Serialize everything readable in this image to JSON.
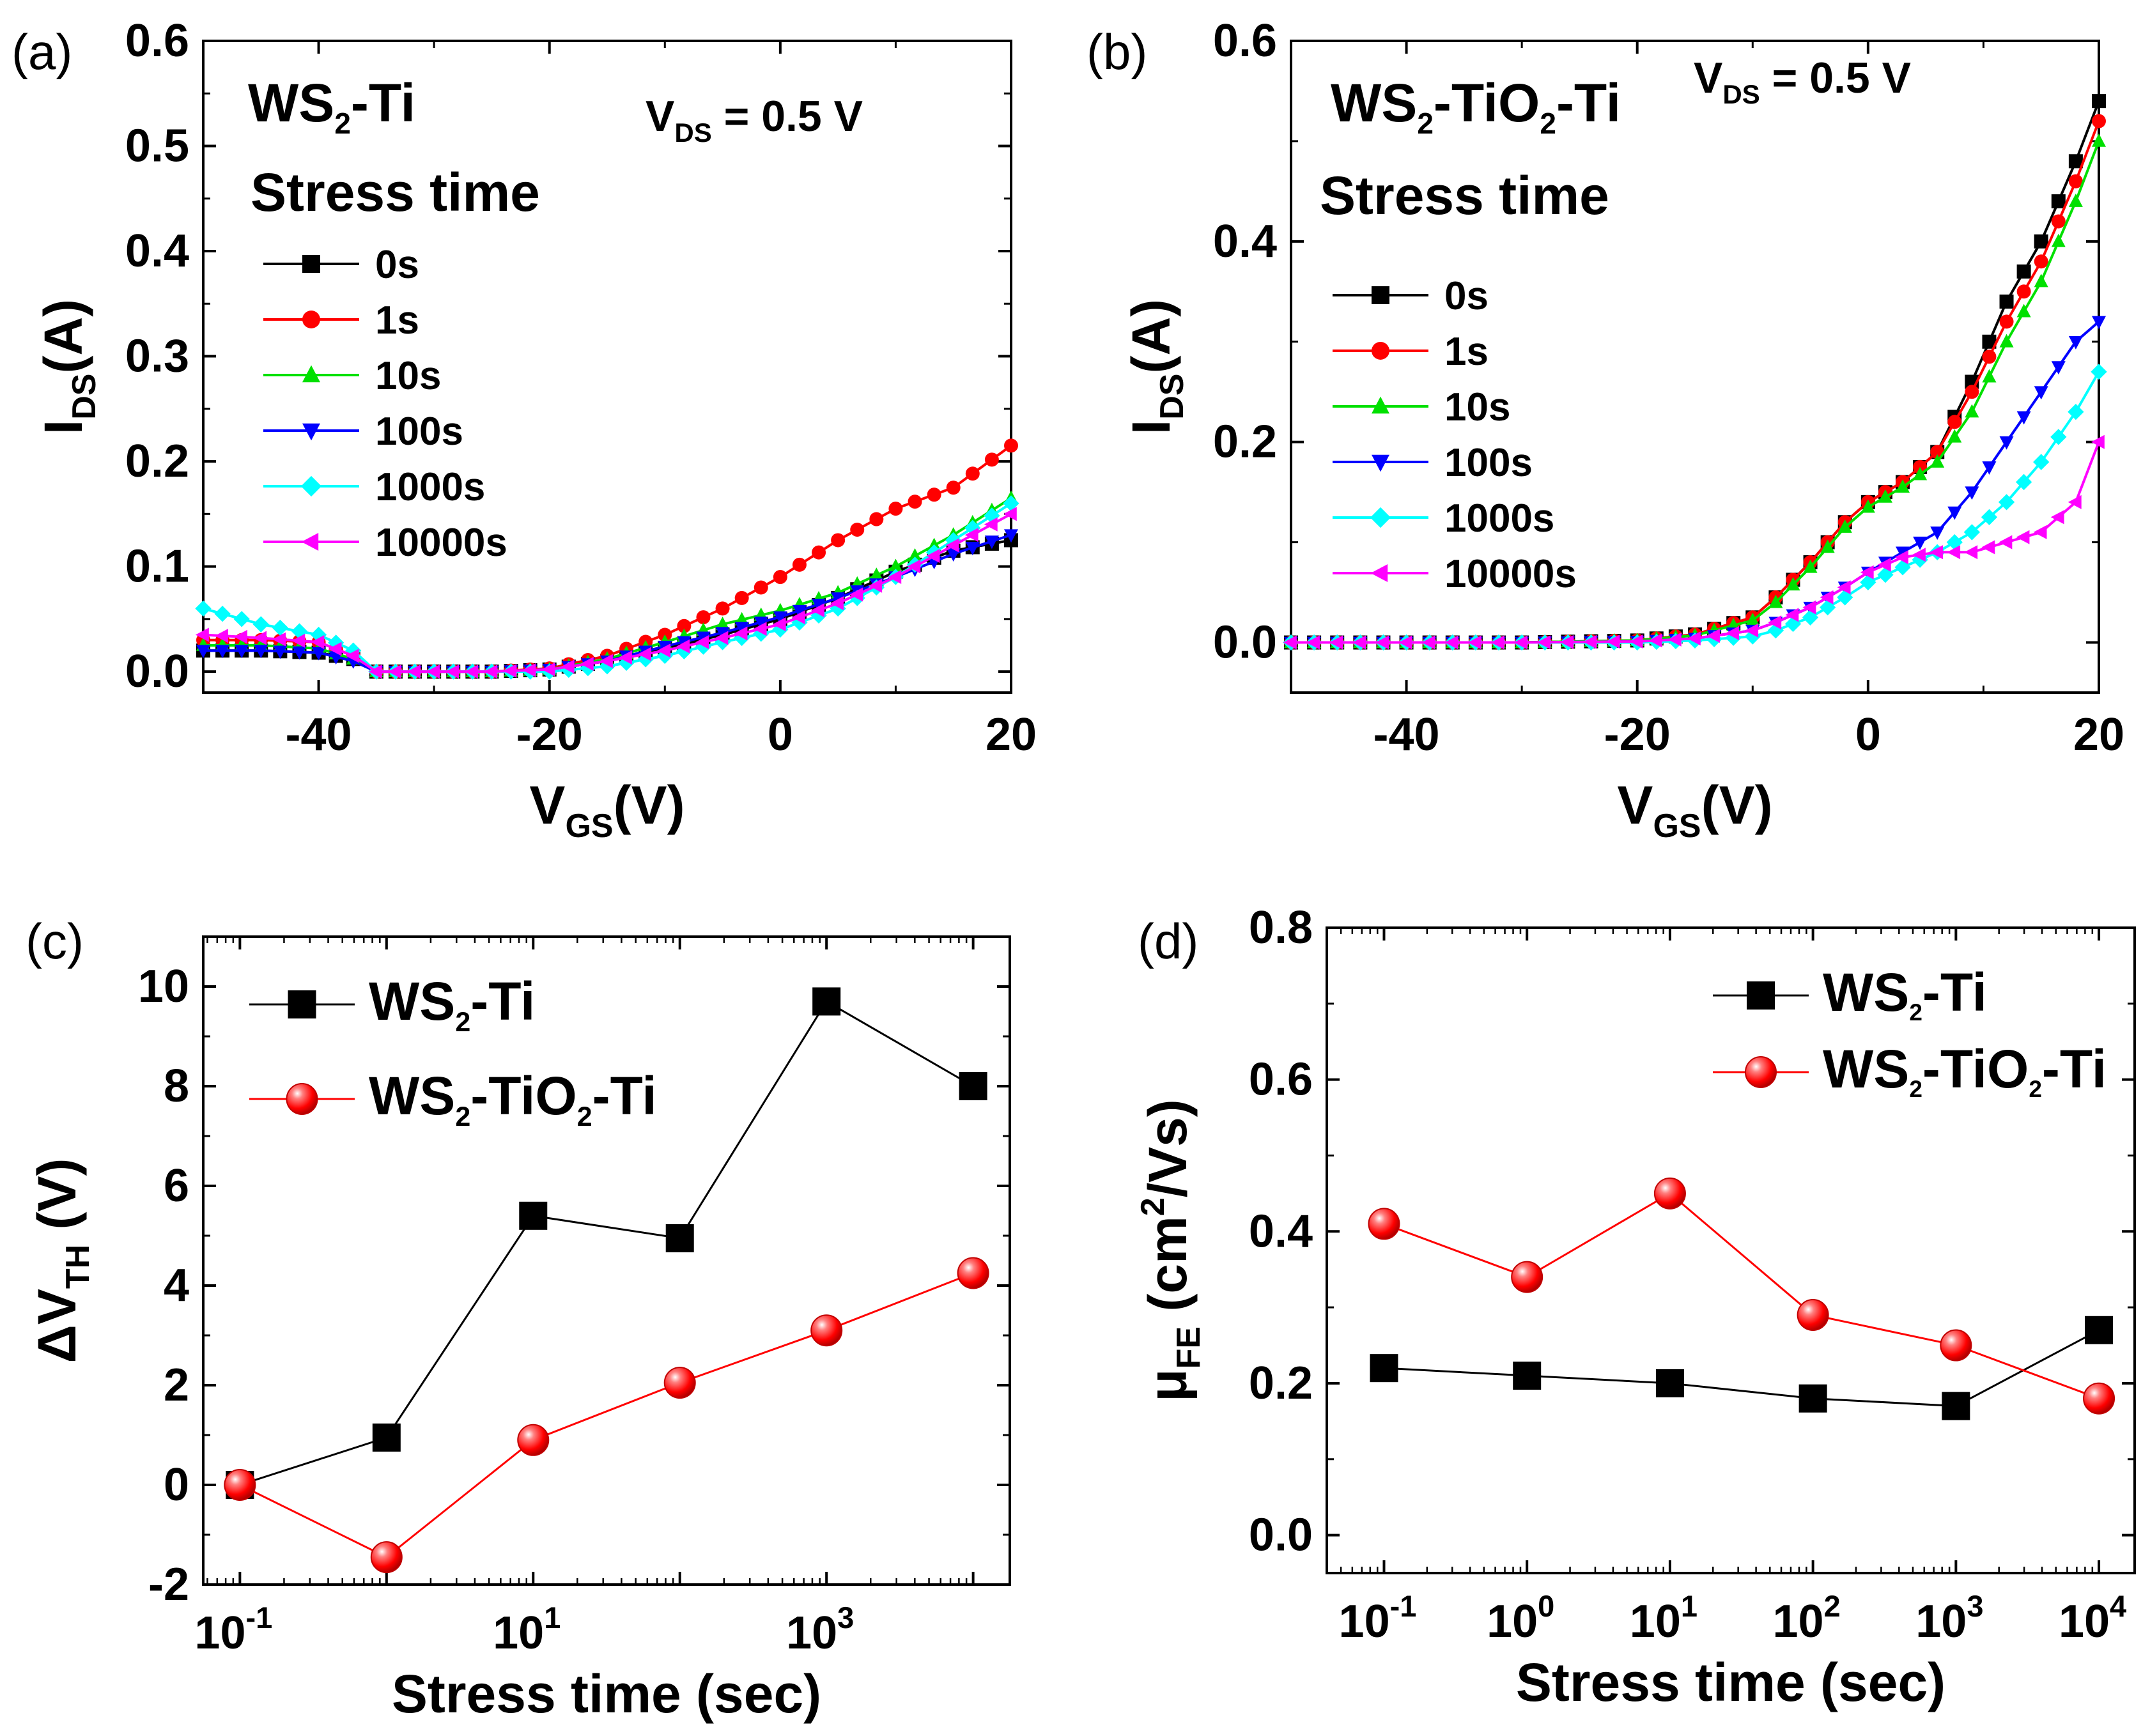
{
  "figure": {
    "panel_labels": [
      "(a)",
      "(b)",
      "(c)",
      "(d)"
    ]
  },
  "colors": {
    "black": "#000000",
    "red": "#ff0000",
    "green": "#00e000",
    "blue": "#0000ff",
    "cyan": "#00ffff",
    "magenta": "#ff00ff"
  },
  "chart_data": [
    {
      "panel": "(a)",
      "type": "line",
      "title": "",
      "sample": "WS2-Ti",
      "sample_parts": {
        "base": "WS",
        "sub": "2",
        "tail": "-Ti"
      },
      "condition": {
        "prefix": "V",
        "sub": "DS",
        "value": " = 0.5 V"
      },
      "legend_title": "Stress time",
      "xlabel": {
        "base": "V",
        "sub": "GS",
        "tail": "(V)"
      },
      "ylabel": {
        "base": "I",
        "sub": "DS",
        "tail": "(A)"
      },
      "xlim": [
        -50,
        20
      ],
      "ylim": [
        -0.02,
        0.6
      ],
      "xticks": [
        "-40",
        "-20",
        "0",
        "20"
      ],
      "xtick_values": [
        -40,
        -20,
        0,
        20
      ],
      "yticks": [
        "0.0",
        "0.1",
        "0.2",
        "0.3",
        "0.4",
        "0.5",
        "0.6"
      ],
      "ytick_values": [
        0.0,
        0.1,
        0.2,
        0.3,
        0.4,
        0.5,
        0.6
      ],
      "x": [
        -50,
        -45,
        -40,
        -37,
        -35,
        -30,
        -25,
        -20,
        -15,
        -10,
        -5,
        0,
        5,
        10,
        15,
        20
      ],
      "series": [
        {
          "name": "0s",
          "color": "#000000",
          "marker": "square",
          "values": [
            0.02,
            0.02,
            0.018,
            0.012,
            0.0,
            0.0,
            0.0,
            0.002,
            0.01,
            0.022,
            0.035,
            0.05,
            0.07,
            0.095,
            0.115,
            0.125
          ]
        },
        {
          "name": "1s",
          "color": "#ff0000",
          "marker": "circle",
          "values": [
            0.03,
            0.03,
            0.028,
            0.015,
            0.0,
            0.0,
            0.0,
            0.003,
            0.015,
            0.035,
            0.06,
            0.09,
            0.125,
            0.155,
            0.175,
            0.215
          ]
        },
        {
          "name": "10s",
          "color": "#00e000",
          "marker": "triangle-up",
          "values": [
            0.025,
            0.025,
            0.022,
            0.012,
            0.0,
            0.0,
            0.0,
            0.002,
            0.012,
            0.028,
            0.045,
            0.058,
            0.075,
            0.1,
            0.13,
            0.165
          ]
        },
        {
          "name": "100s",
          "color": "#0000ff",
          "marker": "triangle-down",
          "values": [
            0.02,
            0.02,
            0.018,
            0.01,
            0.0,
            0.0,
            0.0,
            0.002,
            0.01,
            0.024,
            0.037,
            0.052,
            0.07,
            0.09,
            0.112,
            0.13
          ]
        },
        {
          "name": "1000s",
          "color": "#00ffff",
          "marker": "diamond",
          "values": [
            0.06,
            0.045,
            0.035,
            0.02,
            0.0,
            0.0,
            0.0,
            0.0,
            0.005,
            0.015,
            0.028,
            0.04,
            0.06,
            0.09,
            0.125,
            0.16
          ]
        },
        {
          "name": "10000s",
          "color": "#ff00ff",
          "marker": "triangle-left",
          "values": [
            0.035,
            0.032,
            0.028,
            0.015,
            0.0,
            0.0,
            0.0,
            0.002,
            0.01,
            0.02,
            0.032,
            0.045,
            0.065,
            0.09,
            0.12,
            0.15
          ]
        }
      ]
    },
    {
      "panel": "(b)",
      "type": "line",
      "title": "",
      "sample": "WS2-TiO2-Ti",
      "sample_parts": {
        "base": "WS",
        "sub": "2",
        "mid": "-TiO",
        "sub2": "2",
        "tail": "-Ti"
      },
      "condition": {
        "prefix": "V",
        "sub": "DS",
        "value": " = 0.5 V"
      },
      "legend_title": "Stress time",
      "xlabel": {
        "base": "V",
        "sub": "GS",
        "tail": "(V)"
      },
      "ylabel": {
        "base": "I",
        "sub": "DS",
        "tail": "(A)"
      },
      "xlim": [
        -50,
        20
      ],
      "ylim": [
        -0.05,
        0.6
      ],
      "xticks": [
        "-40",
        "-20",
        "0",
        "20"
      ],
      "xtick_values": [
        -40,
        -20,
        0,
        20
      ],
      "yticks": [
        "0.0",
        "0.2",
        "0.4",
        "0.6"
      ],
      "ytick_values": [
        0.0,
        0.2,
        0.4,
        0.6
      ],
      "x": [
        -50,
        -40,
        -30,
        -20,
        -15,
        -10,
        -8,
        -5,
        -2,
        0,
        3,
        6,
        9,
        12,
        15,
        18,
        20
      ],
      "series": [
        {
          "name": "0s",
          "color": "#000000",
          "marker": "square",
          "values": [
            0.0,
            0.0,
            0.0,
            0.002,
            0.008,
            0.025,
            0.045,
            0.08,
            0.12,
            0.14,
            0.16,
            0.19,
            0.26,
            0.34,
            0.4,
            0.48,
            0.54
          ]
        },
        {
          "name": "1s",
          "color": "#ff0000",
          "marker": "circle",
          "values": [
            0.0,
            0.0,
            0.0,
            0.002,
            0.008,
            0.025,
            0.045,
            0.08,
            0.12,
            0.14,
            0.16,
            0.19,
            0.25,
            0.32,
            0.38,
            0.46,
            0.52
          ]
        },
        {
          "name": "10s",
          "color": "#00e000",
          "marker": "triangle-up",
          "values": [
            0.0,
            0.0,
            0.0,
            0.002,
            0.007,
            0.022,
            0.04,
            0.075,
            0.115,
            0.135,
            0.155,
            0.18,
            0.23,
            0.3,
            0.36,
            0.44,
            0.5
          ]
        },
        {
          "name": "100s",
          "color": "#0000ff",
          "marker": "triangle-down",
          "values": [
            0.0,
            0.0,
            0.0,
            0.001,
            0.004,
            0.012,
            0.02,
            0.035,
            0.055,
            0.07,
            0.09,
            0.11,
            0.15,
            0.2,
            0.25,
            0.3,
            0.32
          ]
        },
        {
          "name": "1000s",
          "color": "#00ffff",
          "marker": "diamond",
          "values": [
            0.0,
            0.0,
            0.0,
            0.0,
            0.002,
            0.006,
            0.012,
            0.025,
            0.045,
            0.06,
            0.075,
            0.09,
            0.11,
            0.14,
            0.18,
            0.23,
            0.27
          ]
        },
        {
          "name": "10000s",
          "color": "#ff00ff",
          "marker": "triangle-left",
          "values": [
            0.0,
            0.0,
            0.0,
            0.001,
            0.004,
            0.012,
            0.02,
            0.035,
            0.055,
            0.07,
            0.085,
            0.09,
            0.09,
            0.1,
            0.11,
            0.14,
            0.2
          ]
        }
      ]
    },
    {
      "panel": "(c)",
      "type": "line",
      "title": "",
      "xscale": "log",
      "xlabel": {
        "text": "Stress time (sec)"
      },
      "ylabel": {
        "base": "ΔV",
        "sub": "TH",
        "tail": " (V)"
      },
      "xlim_log10": [
        -1.25,
        4.25
      ],
      "ylim": [
        -2,
        11
      ],
      "xticks": [
        {
          "base": "10",
          "exp": "-1"
        },
        {
          "base": "10",
          "exp": "1"
        },
        {
          "base": "10",
          "exp": "3"
        }
      ],
      "xtick_log10": [
        -1,
        1,
        3
      ],
      "yticks": [
        "-2",
        "0",
        "2",
        "4",
        "6",
        "8",
        "10"
      ],
      "ytick_values": [
        -2,
        0,
        2,
        4,
        6,
        8,
        10
      ],
      "x_log10": [
        -1,
        0,
        1,
        2,
        3,
        4
      ],
      "series": [
        {
          "name": "WS2-Ti",
          "label_parts": {
            "base": "WS",
            "sub": "2",
            "tail": "-Ti"
          },
          "color": "#000000",
          "marker": "square",
          "values": [
            0.0,
            0.95,
            5.4,
            4.95,
            9.7,
            8.0
          ]
        },
        {
          "name": "WS2-TiO2-Ti",
          "label_parts": {
            "base": "WS",
            "sub": "2",
            "mid": "-TiO",
            "sub2": "2",
            "tail": "-Ti"
          },
          "color": "#ff0000",
          "marker": "sphere",
          "values": [
            0.0,
            -1.45,
            0.9,
            2.05,
            3.1,
            4.25
          ]
        }
      ]
    },
    {
      "panel": "(d)",
      "type": "line",
      "title": "",
      "xscale": "log",
      "xlabel": {
        "text": "Stress time (sec)"
      },
      "ylabel": {
        "base": "μ",
        "sub": "FE",
        "tail": " (cm",
        "sup": "2",
        "tail2": "/Vs)"
      },
      "xlim_log10": [
        -1.4,
        4.25
      ],
      "ylim": [
        -0.05,
        0.8
      ],
      "xticks": [
        {
          "base": "10",
          "exp": "-1"
        },
        {
          "base": "10",
          "exp": "0"
        },
        {
          "base": "10",
          "exp": "1"
        },
        {
          "base": "10",
          "exp": "2"
        },
        {
          "base": "10",
          "exp": "3"
        },
        {
          "base": "10",
          "exp": "4"
        }
      ],
      "xtick_log10": [
        -1,
        0,
        1,
        2,
        3,
        4
      ],
      "yticks": [
        "0.0",
        "0.2",
        "0.4",
        "0.6",
        "0.8"
      ],
      "ytick_values": [
        0.0,
        0.2,
        0.4,
        0.6,
        0.8
      ],
      "x_log10": [
        -1,
        0,
        1,
        2,
        3,
        4
      ],
      "series": [
        {
          "name": "WS2-Ti",
          "label_parts": {
            "base": "WS",
            "sub": "2",
            "tail": "-Ti"
          },
          "color": "#000000",
          "marker": "square",
          "values": [
            0.22,
            0.21,
            0.2,
            0.18,
            0.17,
            0.27
          ]
        },
        {
          "name": "WS2-TiO2-Ti",
          "label_parts": {
            "base": "WS",
            "sub": "2",
            "mid": "-TiO",
            "sub2": "2",
            "tail": "-Ti"
          },
          "color": "#ff0000",
          "marker": "sphere",
          "values": [
            0.41,
            0.34,
            0.45,
            0.29,
            0.25,
            0.18
          ]
        }
      ]
    }
  ]
}
